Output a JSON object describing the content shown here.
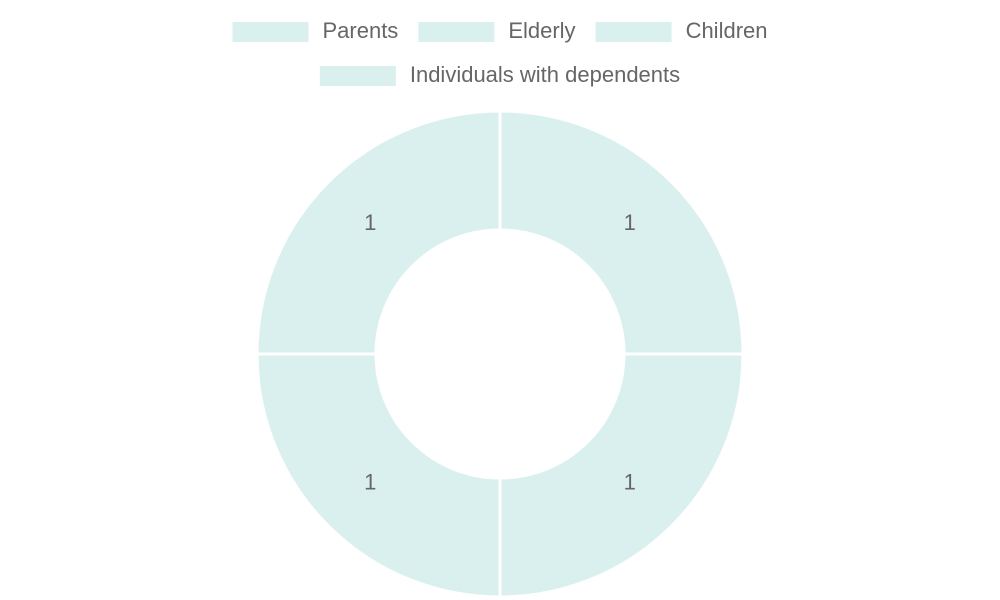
{
  "chart_data": {
    "type": "doughnut",
    "categories": [
      "Parents",
      "Elderly",
      "Children",
      "Individuals with dependents"
    ],
    "values": [
      1,
      1,
      1,
      1
    ],
    "color": "#daf0ef",
    "legend": "top"
  }
}
